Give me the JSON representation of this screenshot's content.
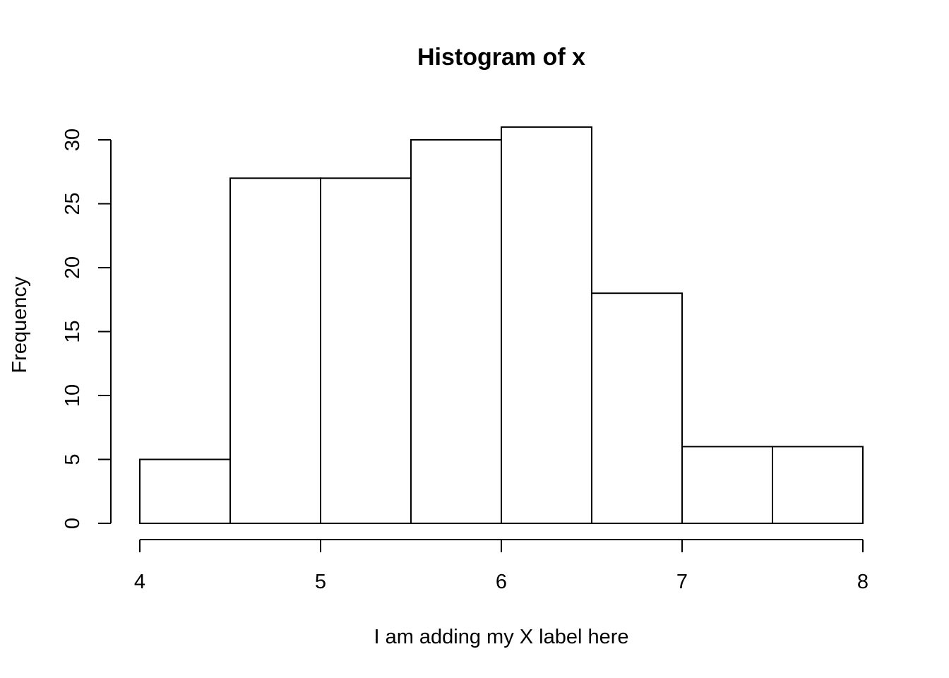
{
  "chart_data": {
    "type": "bar",
    "subtype": "histogram",
    "title": "Histogram of x",
    "xlabel": "I am adding my X label here",
    "ylabel": "Frequency",
    "bins": [
      {
        "start": 4.0,
        "end": 4.5,
        "count": 5
      },
      {
        "start": 4.5,
        "end": 5.0,
        "count": 27
      },
      {
        "start": 5.0,
        "end": 5.5,
        "count": 27
      },
      {
        "start": 5.5,
        "end": 6.0,
        "count": 30
      },
      {
        "start": 6.0,
        "end": 6.5,
        "count": 31
      },
      {
        "start": 6.5,
        "end": 7.0,
        "count": 18
      },
      {
        "start": 7.0,
        "end": 7.5,
        "count": 6
      },
      {
        "start": 7.5,
        "end": 8.0,
        "count": 6
      }
    ],
    "xlim": [
      4,
      8
    ],
    "ylim": [
      0,
      30
    ],
    "xticks": [
      "4",
      "5",
      "6",
      "7",
      "8"
    ],
    "yticks": [
      "0",
      "5",
      "10",
      "15",
      "20",
      "25",
      "30"
    ],
    "grid": false,
    "bar_fill": "#ffffff",
    "bar_stroke": "#000000"
  }
}
